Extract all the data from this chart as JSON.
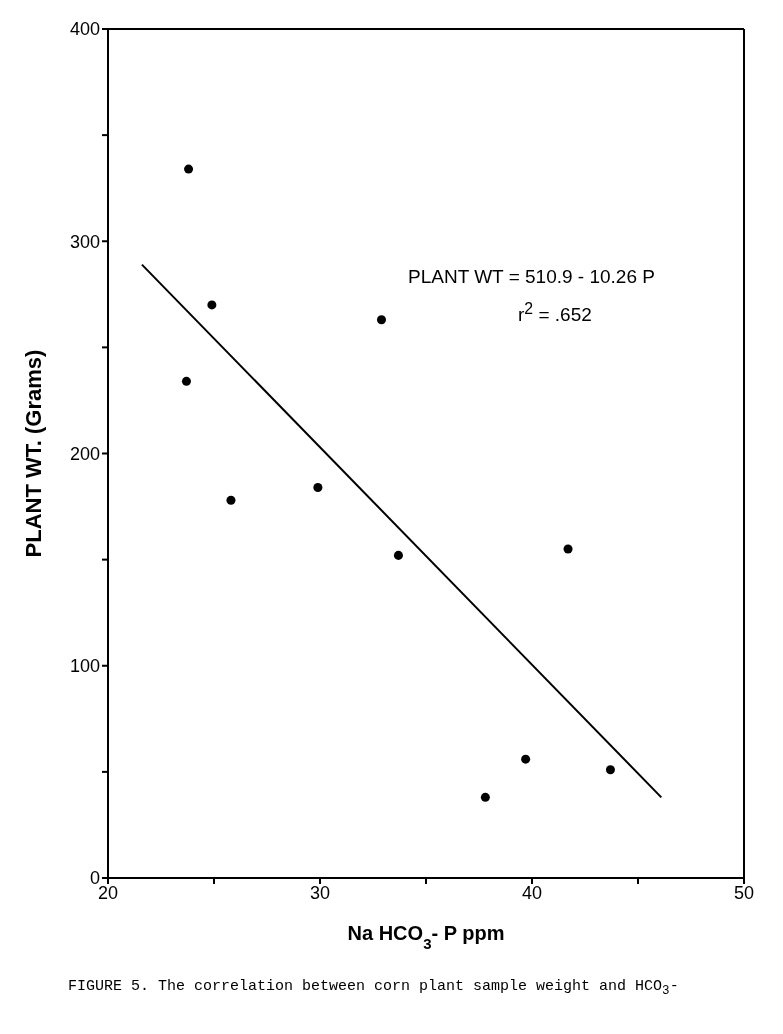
{
  "chart_data": {
    "type": "scatter",
    "xlabel": "Na HCO$_{3}$- P ppm",
    "ylabel": "PLANT WT. (Grams)",
    "xlim": [
      20,
      50
    ],
    "ylim": [
      0,
      400
    ],
    "xticks": [
      20,
      {
        "value": 25,
        "label": null
      },
      30,
      {
        "value": 35,
        "label": null
      },
      40,
      {
        "value": 45,
        "label": null
      },
      50
    ],
    "yticks": [
      0,
      {
        "value": 50,
        "label": null
      },
      100,
      {
        "value": 150,
        "label": null
      },
      200,
      {
        "value": 250,
        "label": null
      },
      300,
      {
        "value": 350,
        "label": null
      },
      400
    ],
    "legend": false,
    "series": [
      {
        "color": "#000000",
        "marker": "circle",
        "x": [
          23.8,
          24.9,
          23.7,
          25.8,
          29.9,
          32.9,
          33.7,
          41.7,
          43.7,
          39.7,
          37.8
        ],
        "values": [
          334,
          270,
          234,
          178,
          184,
          263,
          152,
          155,
          51,
          56,
          38
        ]
      },
      {
        "type": "line",
        "color": "#000000",
        "marker": "none",
        "line_style": "solid",
        "x": [
          21.6,
          46.1
        ],
        "values": [
          289,
          38
        ]
      }
    ],
    "annotations": [
      "PLANT  WT = 510.9 - 10.26 P",
      "r$^{2}$ = .652",
      "FIGURE 5.  The correlation between corn plant sample weight and HCO$_{3}$-"
    ]
  }
}
